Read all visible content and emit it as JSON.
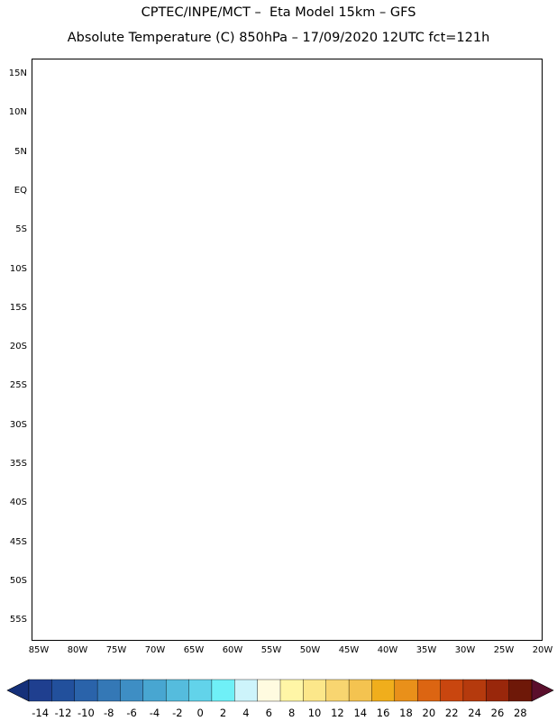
{
  "title_line1": "CPTEC/INPE/MCT –  Eta Model 15km – GFS",
  "title_line2": "Absolute Temperature (C) 850hPa – 17/09/2020 12UTC fct=121h",
  "y_axis_labels": [
    "15N",
    "10N",
    "5N",
    "EQ",
    "5S",
    "10S",
    "15S",
    "20S",
    "25S",
    "30S",
    "35S",
    "40S",
    "45S",
    "50S",
    "55S"
  ],
  "x_axis_labels": [
    "85W",
    "80W",
    "75W",
    "70W",
    "65W",
    "60W",
    "55W",
    "50W",
    "45W",
    "40W",
    "35W",
    "30W",
    "25W",
    "20W"
  ],
  "colorbar": {
    "labels": [
      "-14",
      "-12",
      "-10",
      "-8",
      "-6",
      "-4",
      "-2",
      "0",
      "2",
      "4",
      "6",
      "8",
      "10",
      "12",
      "14",
      "16",
      "18",
      "20",
      "22",
      "24",
      "26",
      "28"
    ],
    "colors": [
      "#1f3f8f",
      "#22509c",
      "#2a63aa",
      "#3478b6",
      "#3e8ec4",
      "#48a6d1",
      "#55bcdd",
      "#62d3ea",
      "#6ff0f7",
      "#cdf4fb",
      "#fffbe0",
      "#fff6a6",
      "#fce78a",
      "#f8d570",
      "#f4c350",
      "#f0ae1c",
      "#e9901a",
      "#dc6512",
      "#c9460f",
      "#b53a0d",
      "#99270b",
      "#6e1808"
    ]
  },
  "contour_levels": [
    -14,
    -12,
    -10,
    -8,
    -6,
    -4,
    -2,
    0,
    2,
    4,
    6,
    8,
    10,
    12,
    14,
    16,
    18,
    20,
    22,
    24,
    26,
    28
  ],
  "border_color": "#000000"
}
